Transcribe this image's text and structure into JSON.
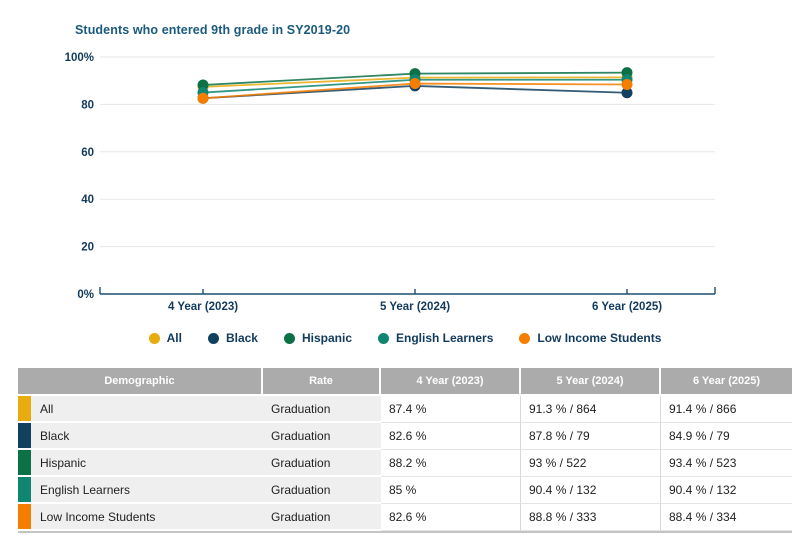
{
  "colors": {
    "title": "#1A5A7C",
    "axis_text": "#123A5C",
    "axis_line": "#1C4E70",
    "grid": "#E7E7E7",
    "table_header_bg": "#ABABAB",
    "table_row_bg": "#F0EFEF"
  },
  "chart_data": {
    "type": "line",
    "title": "Students who entered 9th grade in SY2019-20",
    "categories": [
      "4 Year (2023)",
      "5 Year (2024)",
      "6 Year (2025)"
    ],
    "series": [
      {
        "name": "All",
        "color": "#E8AB10",
        "values": [
          87.4,
          91.3,
          91.4
        ]
      },
      {
        "name": "Black",
        "color": "#12405F",
        "values": [
          82.6,
          87.8,
          84.9
        ]
      },
      {
        "name": "Hispanic",
        "color": "#0C7146",
        "values": [
          88.2,
          93.0,
          93.4
        ]
      },
      {
        "name": "English Learners",
        "color": "#0F8572",
        "values": [
          85.0,
          90.4,
          90.4
        ]
      },
      {
        "name": "Low Income Students",
        "color": "#F57E00",
        "values": [
          82.6,
          88.8,
          88.4
        ]
      }
    ],
    "xlabel": "",
    "ylabel": "",
    "ylim": [
      0,
      100
    ],
    "yticks": [
      {
        "value": 0,
        "label": "0%"
      },
      {
        "value": 20,
        "label": "20"
      },
      {
        "value": 40,
        "label": "40"
      },
      {
        "value": 60,
        "label": "60"
      },
      {
        "value": 80,
        "label": "80"
      },
      {
        "value": 100,
        "label": "100%"
      }
    ],
    "grid": true,
    "legend_position": "bottom"
  },
  "table": {
    "headers": [
      "Demographic",
      "Rate",
      "4 Year (2023)",
      "5 Year (2024)",
      "6 Year (2025)"
    ],
    "rows": [
      {
        "demographic": "All",
        "swatch_color": "#E8AB10",
        "cells": [
          "Graduation",
          "87.4 %",
          "91.3 % / 864",
          "91.4 % / 866"
        ]
      },
      {
        "demographic": "Black",
        "swatch_color": "#12405F",
        "cells": [
          "Graduation",
          "82.6 %",
          "87.8 % / 79",
          "84.9 % / 79"
        ]
      },
      {
        "demographic": "Hispanic",
        "swatch_color": "#0C7146",
        "cells": [
          "Graduation",
          "88.2 %",
          "93 % / 522",
          "93.4 % / 523"
        ]
      },
      {
        "demographic": "English Learners",
        "swatch_color": "#0F8572",
        "cells": [
          "Graduation",
          "85 %",
          "90.4 % / 132",
          "90.4 % / 132"
        ]
      },
      {
        "demographic": "Low Income Students",
        "swatch_color": "#F57E00",
        "cells": [
          "Graduation",
          "82.6 %",
          "88.8 % / 333",
          "88.4 % / 334"
        ]
      }
    ]
  }
}
